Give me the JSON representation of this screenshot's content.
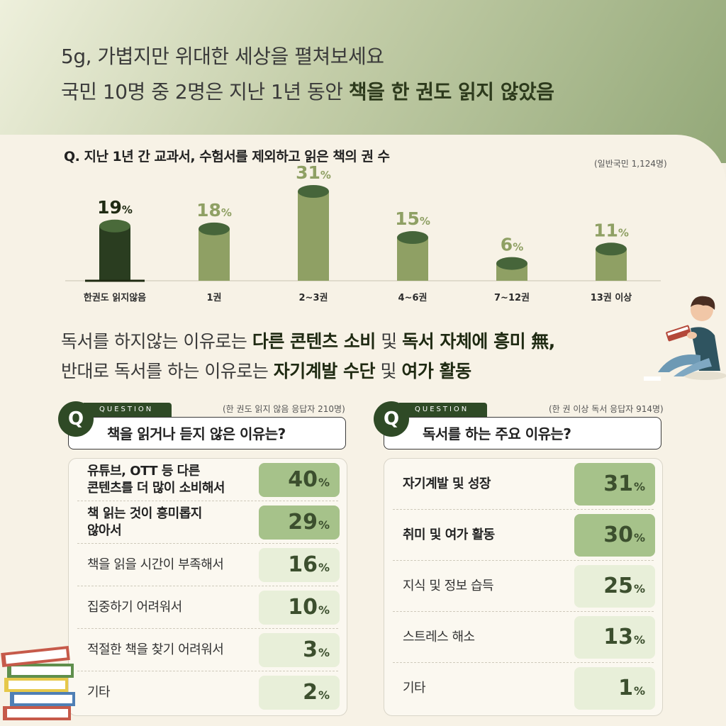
{
  "header": {
    "line1": "5g, 가볍지만 위대한 세상을 펼쳐보세요",
    "line2_plain": "국민 10명 중 2명은 지난 1년 동안 ",
    "line2_bold": "책을 한 권도 읽지 않았음"
  },
  "survey": {
    "question": "Q. 지난 1년 간 교과서, 수험서를 제외하고 읽은 책의 권 수",
    "sample": "(일반국민 1,124명)"
  },
  "chart_data": {
    "type": "bar",
    "categories": [
      "한권도 읽지않음",
      "1권",
      "2~3권",
      "4~6권",
      "7~12권",
      "13권 이상"
    ],
    "values": [
      19,
      18,
      31,
      15,
      6,
      11
    ],
    "unit": "%",
    "ylim": [
      0,
      31
    ],
    "highlight_index": 0,
    "colors": {
      "highlight": "#2a3d20",
      "bar": "#8fa064",
      "cap_highlight": "#4a6a3a",
      "cap": "#46653a",
      "label_highlight": "#1f2a12",
      "label": "#8fa064"
    }
  },
  "summary": {
    "line1": [
      {
        "t": "독서를 하지않는 이유로는 ",
        "b": false
      },
      {
        "t": "다른 콘텐츠 소비",
        "b": true
      },
      {
        "t": " 및 ",
        "b": false
      },
      {
        "t": "독서 자체에 흥미 無,",
        "b": true
      }
    ],
    "line2": [
      {
        "t": "반대로 독서를 하는 이유로는 ",
        "b": false
      },
      {
        "t": "자기계발 수단",
        "b": true
      },
      {
        "t": " 및 ",
        "b": false
      },
      {
        "t": "여가 활동",
        "b": true
      }
    ]
  },
  "left_card": {
    "tag": "QUESTION",
    "q": "Q",
    "title": "책을 읽거나 듣지 않은 이유는?",
    "sample": "(한 권도 읽지 않음 응답자 210명)",
    "rows": [
      {
        "label": "유튜브, OTT 등 다른\n콘텐츠를 더 많이 소비해서",
        "value": "40",
        "unit": "%",
        "strong": true
      },
      {
        "label": "책 읽는 것이 흥미롭지\n않아서",
        "value": "29",
        "unit": "%",
        "strong": true
      },
      {
        "label": "책을 읽을 시간이 부족해서",
        "value": "16",
        "unit": "%",
        "strong": false
      },
      {
        "label": "집중하기 어려워서",
        "value": "10",
        "unit": "%",
        "strong": false
      },
      {
        "label": "적절한 책을 찾기 어려워서",
        "value": "3",
        "unit": "%",
        "strong": false
      },
      {
        "label": "기타",
        "value": "2",
        "unit": "%",
        "strong": false
      }
    ]
  },
  "right_card": {
    "tag": "QUESTION",
    "q": "Q",
    "title": "독서를 하는 주요 이유는?",
    "sample": "(한 권 이상 독서 응답자 914명)",
    "rows": [
      {
        "label": "자기계발 및 성장",
        "value": "31",
        "unit": "%",
        "strong": true
      },
      {
        "label": "취미 및 여가 활동",
        "value": "30",
        "unit": "%",
        "strong": true
      },
      {
        "label": "지식 및 정보 습득",
        "value": "25",
        "unit": "%",
        "strong": false
      },
      {
        "label": "스트레스 해소",
        "value": "13",
        "unit": "%",
        "strong": false
      },
      {
        "label": "기타",
        "value": "1",
        "unit": "%",
        "strong": false
      }
    ]
  }
}
